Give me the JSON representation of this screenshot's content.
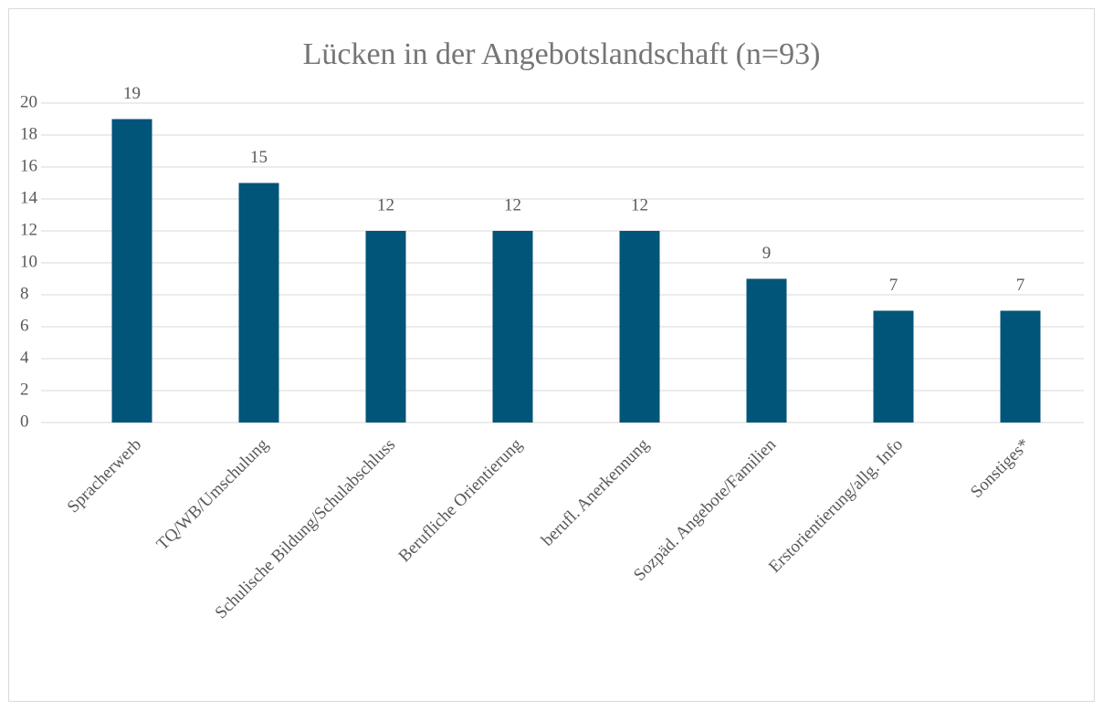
{
  "chart_data": {
    "type": "bar",
    "title": "Lücken in der Angebotslandschaft (n=93)",
    "categories": [
      "Spracherwerb",
      "TQ/WB/Umschulung",
      "Schulische Bildung/Schulabschluss",
      "Berufliche Orientierung",
      "berufl. Anerkennung",
      "Sozpäd. Angebote/Familien",
      "Erstorientierung/allg. Info",
      "Sonstiges*"
    ],
    "values": [
      19,
      15,
      12,
      12,
      12,
      9,
      7,
      7
    ],
    "color": "#005578",
    "ylim": [
      0,
      20
    ],
    "yticks": [
      0,
      2,
      4,
      6,
      8,
      10,
      12,
      14,
      16,
      18,
      20
    ],
    "grid": true
  }
}
